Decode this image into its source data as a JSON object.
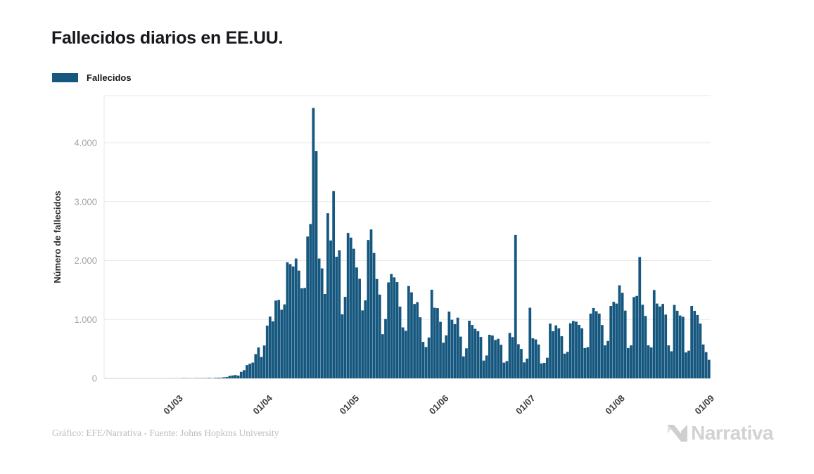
{
  "title": "Fallecidos diarios en EE.UU.",
  "legend": {
    "label": "Fallecidos"
  },
  "footer": {
    "credit": "Gráfico: EFE/Narrativa - Fuente: Johns Hopkins University"
  },
  "logo": {
    "text": "Narrativa"
  },
  "colors": {
    "bar": "#15577E",
    "title": "#16181D",
    "axis_text": "#A3A3A3",
    "grid": "#E9E9E9",
    "footer": "#BDBDBD",
    "logo": "#D2D2D2"
  },
  "chart_data": {
    "type": "bar",
    "title": "Fallecidos diarios en EE.UU.",
    "series_name": "Fallecidos",
    "xlabel": "",
    "ylabel": "Número de fallecidos",
    "ylim": [
      0,
      4800
    ],
    "grid": true,
    "legend_position": "top-left",
    "y_ticks": [
      {
        "value": 0,
        "label": "0"
      },
      {
        "value": 1000,
        "label": "1.000"
      },
      {
        "value": 2000,
        "label": "2.000"
      },
      {
        "value": 3000,
        "label": "3.000"
      },
      {
        "value": 4000,
        "label": "4.000"
      }
    ],
    "x_ticks": [
      {
        "label": "01/03",
        "index": 26
      },
      {
        "label": "01/04",
        "index": 57
      },
      {
        "label": "01/05",
        "index": 87
      },
      {
        "label": "01/06",
        "index": 118
      },
      {
        "label": "01/07",
        "index": 148
      },
      {
        "label": "01/08",
        "index": 179
      },
      {
        "label": "01/09",
        "index": 210
      }
    ],
    "values": [
      0,
      0,
      0,
      0,
      0,
      0,
      0,
      0,
      0,
      0,
      0,
      0,
      0,
      0,
      0,
      0,
      0,
      0,
      0,
      0,
      0,
      0,
      1,
      0,
      1,
      1,
      1,
      4,
      3,
      2,
      1,
      3,
      4,
      3,
      4,
      4,
      8,
      3,
      9,
      11,
      11,
      18,
      23,
      41,
      49,
      57,
      46,
      111,
      140,
      225,
      247,
      268,
      411,
      525,
      363,
      558,
      895,
      1049,
      968,
      1321,
      1331,
      1165,
      1255,
      1970,
      1940,
      1900,
      2035,
      1830,
      1528,
      1535,
      2408,
      2620,
      4591,
      3857,
      2035,
      1867,
      1433,
      2804,
      2341,
      3179,
      2065,
      2173,
      1087,
      1384,
      2470,
      2390,
      2201,
      1883,
      1691,
      1154,
      1324,
      2350,
      2528,
      2129,
      1687,
      1422,
      750,
      1008,
      1630,
      1772,
      1715,
      1635,
      1218,
      865,
      808,
      1568,
      1461,
      1263,
      1293,
      1037,
      620,
      532,
      693,
      1505,
      1199,
      1193,
      960,
      605,
      730,
      1134,
      995,
      921,
      1031,
      709,
      373,
      510,
      979,
      906,
      841,
      800,
      703,
      302,
      389,
      740,
      727,
      651,
      672,
      570,
      267,
      294,
      771,
      700,
      2437,
      580,
      500,
      271,
      335,
      1199,
      680,
      661,
      575,
      254,
      263,
      350,
      930,
      800,
      900,
      850,
      715,
      420,
      450,
      935,
      975,
      963,
      908,
      850,
      515,
      530,
      1100,
      1195,
      1140,
      1100,
      905,
      560,
      635,
      1230,
      1300,
      1270,
      1580,
      1452,
      1150,
      515,
      560,
      1380,
      1400,
      2060,
      1250,
      1060,
      560,
      525,
      1500,
      1270,
      1220,
      1264,
      1083,
      560,
      460,
      1247,
      1148,
      1067,
      1045,
      440,
      470,
      1230,
      1147,
      1076,
      930,
      575,
      445,
      315
    ]
  }
}
